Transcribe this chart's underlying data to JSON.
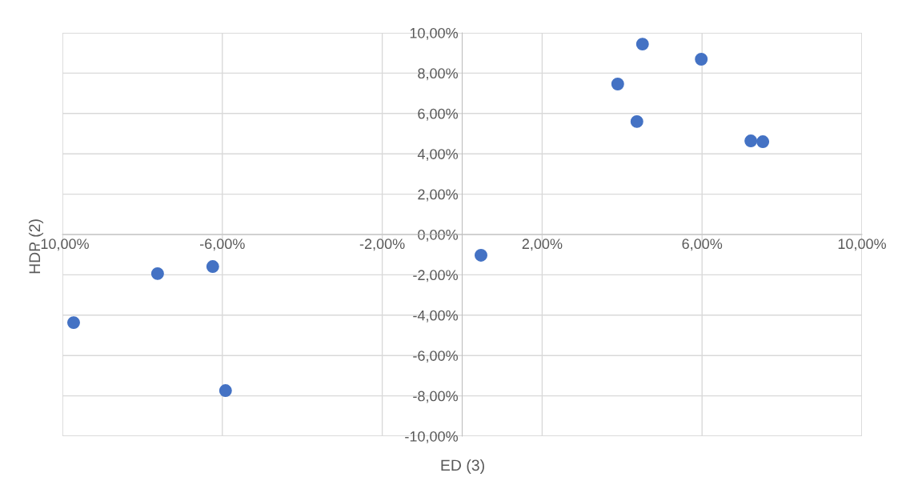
{
  "chart_data": {
    "type": "scatter",
    "xlabel": "ED (3)",
    "ylabel": "HDP (2)",
    "x": [
      -9.72,
      -7.62,
      -6.24,
      -5.92,
      0.47,
      3.89,
      4.37,
      4.51,
      5.98,
      7.22,
      7.52
    ],
    "series": [
      {
        "color": "#4472c4",
        "values": [
          -4.37,
          -1.94,
          -1.59,
          -7.74,
          -1.03,
          7.46,
          5.6,
          9.44,
          8.69,
          4.64,
          4.6
        ]
      }
    ],
    "xlim": [
      -10,
      10
    ],
    "ylim": [
      -10,
      10
    ],
    "xticks": [
      {
        "value": -10,
        "label": "-10,00%"
      },
      {
        "value": -6,
        "label": "-6,00%"
      },
      {
        "value": -2,
        "label": "-2,00%"
      },
      {
        "value": 2,
        "label": "2,00%"
      },
      {
        "value": 6,
        "label": "6,00%"
      },
      {
        "value": 10,
        "label": "10,00%"
      }
    ],
    "yticks": [
      {
        "value": -10,
        "label": "-10,00%"
      },
      {
        "value": -8,
        "label": "-8,00%"
      },
      {
        "value": -6,
        "label": "-6,00%"
      },
      {
        "value": -4,
        "label": "-4,00%"
      },
      {
        "value": -2,
        "label": "-2,00%"
      },
      {
        "value": 0,
        "label": "0,00%"
      },
      {
        "value": 2,
        "label": "2,00%"
      },
      {
        "value": 4,
        "label": "4,00%"
      },
      {
        "value": 6,
        "label": "6,00%"
      },
      {
        "value": 8,
        "label": "8,00%"
      },
      {
        "value": 10,
        "label": "10,00%"
      }
    ],
    "grid": true,
    "marker": "circle"
  }
}
